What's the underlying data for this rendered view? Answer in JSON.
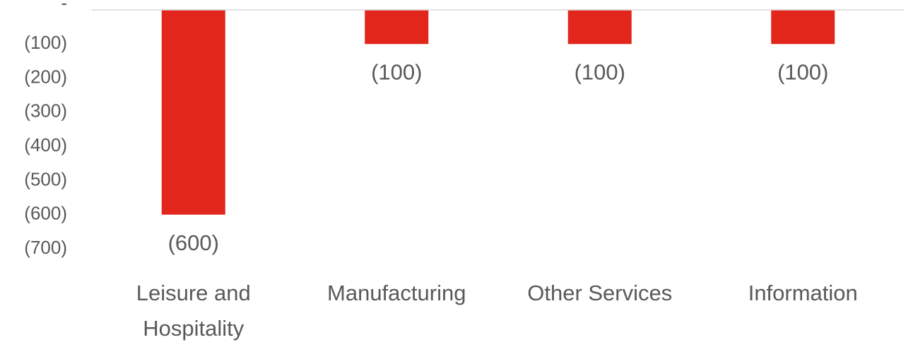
{
  "chart_data": {
    "type": "bar",
    "categories": [
      "Leisure and Hospitality",
      "Manufacturing",
      "Other Services",
      "Information"
    ],
    "values": [
      -600,
      -100,
      -100,
      -100
    ],
    "value_labels": [
      "(600)",
      "(100)",
      "(100)",
      "(100)"
    ],
    "color": "#e2261c",
    "ylim": [
      -700,
      0
    ],
    "yticks": [
      {
        "value": 0,
        "label": "-"
      },
      {
        "value": -100,
        "label": "(100)"
      },
      {
        "value": -200,
        "label": "(200)"
      },
      {
        "value": -300,
        "label": "(300)"
      },
      {
        "value": -400,
        "label": "(400)"
      },
      {
        "value": -500,
        "label": "(500)"
      },
      {
        "value": -600,
        "label": "(600)"
      },
      {
        "value": -700,
        "label": "(700)"
      }
    ],
    "grid": false
  }
}
